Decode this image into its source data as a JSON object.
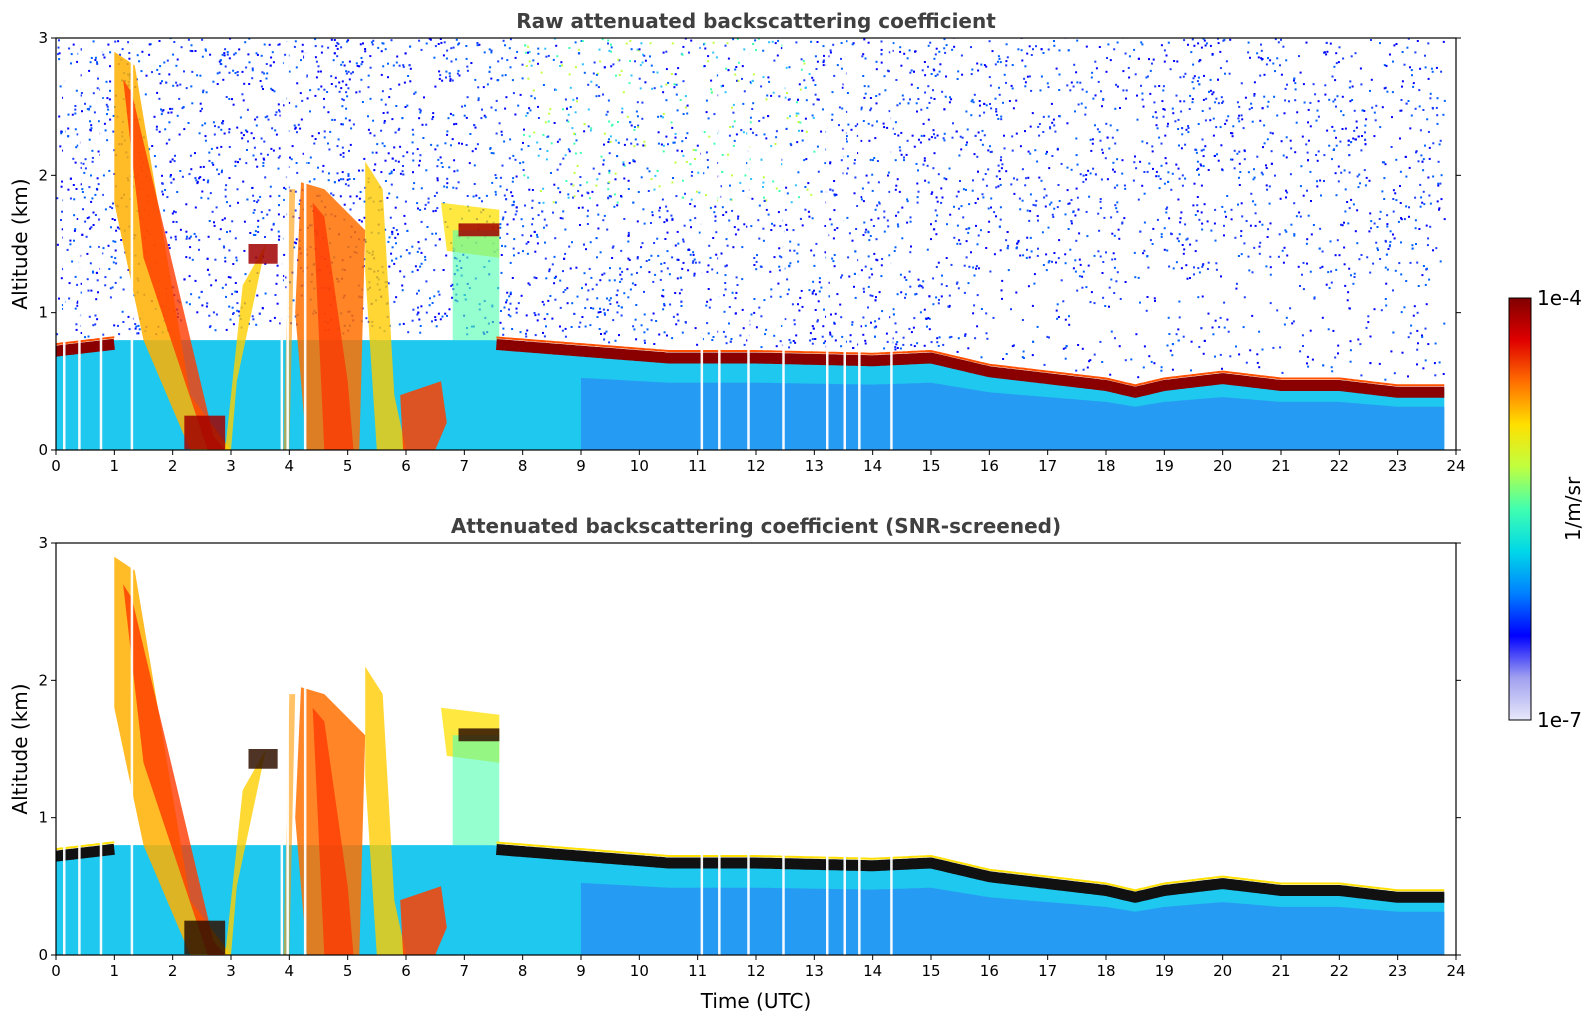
{
  "chart_data": [
    {
      "type": "heatmap",
      "title": "Raw attenuated backscattering coefficient",
      "xlabel": "",
      "ylabel": "Altitude (km)",
      "xlim": [
        0,
        24
      ],
      "ylim": [
        0,
        3
      ],
      "xticks": [
        "0",
        "1",
        "2",
        "3",
        "4",
        "5",
        "6",
        "7",
        "8",
        "9",
        "10",
        "11",
        "12",
        "13",
        "14",
        "15",
        "16",
        "17",
        "18",
        "19",
        "20",
        "21",
        "22",
        "23",
        "24"
      ],
      "yticks": [
        "0",
        "1",
        "2",
        "3"
      ],
      "grid": false,
      "noise_screened": false,
      "boundary_layer_top_km": {
        "time": [
          0,
          1,
          7.5,
          9,
          10.5,
          12,
          14,
          15,
          16,
          17,
          18,
          18.5,
          19,
          20,
          21,
          22,
          23,
          23.8
        ],
        "altitude": [
          0.75,
          0.8,
          0.8,
          0.75,
          0.7,
          0.7,
          0.68,
          0.7,
          0.6,
          0.55,
          0.5,
          0.45,
          0.5,
          0.55,
          0.5,
          0.5,
          0.45,
          0.45
        ]
      }
    },
    {
      "type": "heatmap",
      "title": "Attenuated backscattering coefficient (SNR-screened)",
      "xlabel": "Time (UTC)",
      "ylabel": "Altitude (km)",
      "xlim": [
        0,
        24
      ],
      "ylim": [
        0,
        3
      ],
      "xticks": [
        "0",
        "1",
        "2",
        "3",
        "4",
        "5",
        "6",
        "7",
        "8",
        "9",
        "10",
        "11",
        "12",
        "13",
        "14",
        "15",
        "16",
        "17",
        "18",
        "19",
        "20",
        "21",
        "22",
        "23",
        "24"
      ],
      "yticks": [
        "0",
        "1",
        "2",
        "3"
      ],
      "grid": false,
      "noise_screened": true,
      "boundary_layer_top_km": {
        "time": [
          0,
          1,
          7.5,
          9,
          10.5,
          12,
          14,
          15,
          16,
          17,
          18,
          18.5,
          19,
          20,
          21,
          22,
          23,
          23.8
        ],
        "altitude": [
          0.75,
          0.8,
          0.8,
          0.75,
          0.7,
          0.7,
          0.68,
          0.7,
          0.6,
          0.55,
          0.5,
          0.45,
          0.5,
          0.55,
          0.5,
          0.5,
          0.45,
          0.45
        ]
      }
    }
  ],
  "colorbar": {
    "label": "1/m/sr",
    "max_label": "1e-4",
    "min_label": "1e-7",
    "scale": "log",
    "range": [
      1e-07,
      0.0001
    ],
    "colors": [
      "#e8e8fa",
      "#a0a0f0",
      "#0000ff",
      "#0080ff",
      "#00d8e8",
      "#40ffb0",
      "#c0ff40",
      "#ffe000",
      "#ff7000",
      "#e00000",
      "#800000"
    ]
  }
}
